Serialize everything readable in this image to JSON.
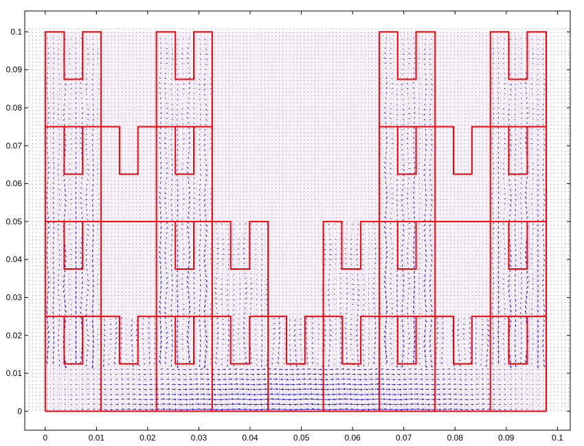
{
  "chart_data": {
    "type": "quiver",
    "title": "",
    "xlabel": "",
    "ylabel": "",
    "xlim": [
      -0.004,
      0.1025
    ],
    "ylim": [
      -0.005,
      0.1055
    ],
    "grid": false,
    "legend": "none",
    "x_ticks": [
      0,
      0.01,
      0.02,
      0.03,
      0.04,
      0.05,
      0.06,
      0.07,
      0.08,
      0.09,
      0.1
    ],
    "x_tick_labels": [
      "0",
      "0.01",
      "0.02",
      "0.03",
      "0.04",
      "0.05",
      "0.06",
      "0.07",
      "0.08",
      "0.09",
      "0.1"
    ],
    "y_ticks": [
      0,
      0.01,
      0.02,
      0.03,
      0.04,
      0.05,
      0.06,
      0.07,
      0.08,
      0.09,
      0.1
    ],
    "y_tick_labels": [
      "0",
      "0.01",
      "0.02",
      "0.03",
      "0.04",
      "0.05",
      "0.06",
      "0.07",
      "0.08",
      "0.09",
      "0.1"
    ],
    "outline_color": "#ff0000",
    "vector_color": "#0000cc",
    "domain_fill": "#f4e6f4",
    "outline_segments": [
      [
        [
          0,
          0
        ],
        [
          0.0978,
          0
        ]
      ],
      [
        [
          0,
          0
        ],
        [
          0,
          0.1
        ],
        [
          0.0037,
          0.1
        ],
        [
          0.0037,
          0.0875
        ],
        [
          0.0073,
          0.0875
        ],
        [
          0.0073,
          0.1
        ],
        [
          0.0109,
          0.1
        ],
        [
          0.0109,
          0
        ]
      ],
      [
        [
          0.0217,
          0
        ],
        [
          0.0217,
          0.1
        ],
        [
          0.0254,
          0.1
        ],
        [
          0.0254,
          0.0875
        ],
        [
          0.029,
          0.0875
        ],
        [
          0.029,
          0.1
        ],
        [
          0.0326,
          0.1
        ],
        [
          0.0326,
          0
        ]
      ],
      [
        [
          0.0652,
          0
        ],
        [
          0.0652,
          0.1
        ],
        [
          0.0688,
          0.1
        ],
        [
          0.0688,
          0.0875
        ],
        [
          0.0724,
          0.0875
        ],
        [
          0.0724,
          0.1
        ],
        [
          0.0761,
          0.1
        ],
        [
          0.0761,
          0
        ]
      ],
      [
        [
          0.0869,
          0
        ],
        [
          0.0869,
          0.1
        ],
        [
          0.0905,
          0.1
        ],
        [
          0.0905,
          0.0875
        ],
        [
          0.0941,
          0.0875
        ],
        [
          0.0941,
          0.1
        ],
        [
          0.0978,
          0.1
        ],
        [
          0.0978,
          0
        ]
      ],
      [
        [
          0,
          0.075
        ],
        [
          0.0145,
          0.075
        ],
        [
          0.0145,
          0.0625
        ],
        [
          0.0181,
          0.0625
        ],
        [
          0.0181,
          0.075
        ],
        [
          0.0326,
          0.075
        ]
      ],
      [
        [
          0.0652,
          0.075
        ],
        [
          0.0797,
          0.075
        ],
        [
          0.0797,
          0.0625
        ],
        [
          0.0833,
          0.0625
        ],
        [
          0.0833,
          0.075
        ],
        [
          0.0978,
          0.075
        ]
      ],
      [
        [
          0.0037,
          0.075
        ],
        [
          0.0037,
          0.0625
        ],
        [
          0.0073,
          0.0625
        ],
        [
          0.0073,
          0.075
        ]
      ],
      [
        [
          0.0254,
          0.075
        ],
        [
          0.0254,
          0.0625
        ],
        [
          0.029,
          0.0625
        ],
        [
          0.029,
          0.075
        ]
      ],
      [
        [
          0.0688,
          0.075
        ],
        [
          0.0688,
          0.0625
        ],
        [
          0.0724,
          0.0625
        ],
        [
          0.0724,
          0.075
        ]
      ],
      [
        [
          0.0905,
          0.075
        ],
        [
          0.0905,
          0.0625
        ],
        [
          0.0941,
          0.0625
        ],
        [
          0.0941,
          0.075
        ]
      ],
      [
        [
          0,
          0.05
        ],
        [
          0.0326,
          0.05
        ],
        [
          0.0362,
          0.05
        ],
        [
          0.0362,
          0.0375
        ],
        [
          0.0399,
          0.0375
        ],
        [
          0.0399,
          0.05
        ],
        [
          0.0435,
          0.05
        ],
        [
          0.0435,
          0
        ]
      ],
      [
        [
          0.0543,
          0
        ],
        [
          0.0543,
          0.05
        ],
        [
          0.0579,
          0.05
        ],
        [
          0.0579,
          0.0375
        ],
        [
          0.0616,
          0.0375
        ],
        [
          0.0616,
          0.05
        ],
        [
          0.0978,
          0.05
        ]
      ],
      [
        [
          0.0037,
          0.05
        ],
        [
          0.0037,
          0.0375
        ],
        [
          0.0073,
          0.0375
        ],
        [
          0.0073,
          0.05
        ]
      ],
      [
        [
          0.0254,
          0.05
        ],
        [
          0.0254,
          0.0375
        ],
        [
          0.029,
          0.0375
        ],
        [
          0.029,
          0.05
        ]
      ],
      [
        [
          0.0688,
          0.05
        ],
        [
          0.0688,
          0.0375
        ],
        [
          0.0724,
          0.0375
        ],
        [
          0.0724,
          0.05
        ]
      ],
      [
        [
          0.0905,
          0.05
        ],
        [
          0.0905,
          0.0375
        ],
        [
          0.0941,
          0.0375
        ],
        [
          0.0941,
          0.05
        ]
      ],
      [
        [
          0,
          0.025
        ],
        [
          0.0145,
          0.025
        ],
        [
          0.0145,
          0.0125
        ],
        [
          0.0181,
          0.0125
        ],
        [
          0.0181,
          0.025
        ],
        [
          0.0362,
          0.025
        ],
        [
          0.0362,
          0.0125
        ],
        [
          0.0399,
          0.0125
        ],
        [
          0.0399,
          0.025
        ],
        [
          0.0471,
          0.025
        ],
        [
          0.0471,
          0.0125
        ],
        [
          0.0507,
          0.0125
        ],
        [
          0.0507,
          0.025
        ],
        [
          0.058,
          0.025
        ],
        [
          0.058,
          0.0125
        ],
        [
          0.0616,
          0.0125
        ],
        [
          0.0616,
          0.025
        ],
        [
          0.0797,
          0.025
        ],
        [
          0.0797,
          0.0125
        ],
        [
          0.0833,
          0.0125
        ],
        [
          0.0833,
          0.025
        ],
        [
          0.0978,
          0.025
        ]
      ],
      [
        [
          0.0037,
          0.025
        ],
        [
          0.0037,
          0.0125
        ],
        [
          0.0073,
          0.0125
        ],
        [
          0.0073,
          0.025
        ]
      ],
      [
        [
          0.0254,
          0.025
        ],
        [
          0.0254,
          0.0125
        ],
        [
          0.029,
          0.0125
        ],
        [
          0.029,
          0.025
        ]
      ],
      [
        [
          0.0688,
          0.025
        ],
        [
          0.0688,
          0.0125
        ],
        [
          0.0724,
          0.0125
        ],
        [
          0.0724,
          0.025
        ]
      ],
      [
        [
          0.0905,
          0.025
        ],
        [
          0.0905,
          0.0125
        ],
        [
          0.0941,
          0.0125
        ],
        [
          0.0941,
          0.025
        ]
      ]
    ],
    "vector_field": {
      "x_range": [
        0.0005,
        0.0975
      ],
      "y_range": [
        0.0005,
        0.0995
      ],
      "spacing": 0.001,
      "description": "dense velocity arrows: strong rightward flow along the bottom channel, vertical upward/downward flow in the fins"
    }
  }
}
